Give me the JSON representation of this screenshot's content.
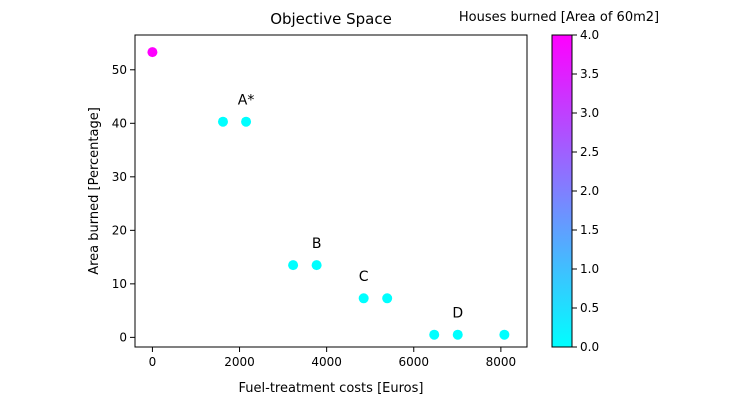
{
  "chart_data": {
    "type": "scatter",
    "title": "Objective Space",
    "xlabel": "Fuel-treatment costs [Euros]",
    "ylabel": "Area burned [Percentage]",
    "xlim": [
      -400,
      8600
    ],
    "ylim": [
      -1.8,
      56.5
    ],
    "xticks": [
      0,
      2000,
      4000,
      6000,
      8000
    ],
    "yticks": [
      0,
      10,
      20,
      30,
      40,
      50
    ],
    "grid": false,
    "colorbar": {
      "label": "Houses burned [Area of 60m2]",
      "range": [
        0.0,
        4.0
      ],
      "ticks": [
        "0.0",
        "0.5",
        "1.0",
        "1.5",
        "2.0",
        "2.5",
        "3.0",
        "3.5",
        "4.0"
      ],
      "colormap": "cool",
      "colors": [
        "#00ffff",
        "#ff00ff"
      ]
    },
    "points": [
      {
        "x": 0,
        "y": 53.3,
        "houses": 4.0
      },
      {
        "x": 1620,
        "y": 40.3,
        "houses": 0.0
      },
      {
        "x": 2150,
        "y": 40.3,
        "houses": 0.0
      },
      {
        "x": 3230,
        "y": 13.5,
        "houses": 0.0
      },
      {
        "x": 3770,
        "y": 13.5,
        "houses": 0.0
      },
      {
        "x": 4850,
        "y": 7.3,
        "houses": 0.0
      },
      {
        "x": 5390,
        "y": 7.3,
        "houses": 0.0
      },
      {
        "x": 6470,
        "y": 0.5,
        "houses": 0.0
      },
      {
        "x": 7010,
        "y": 0.5,
        "houses": 0.0
      },
      {
        "x": 8080,
        "y": 0.5,
        "houses": 0.0
      }
    ],
    "annotations": [
      {
        "text": "A*",
        "x": 2150,
        "y": 43.5
      },
      {
        "text": "B",
        "x": 3770,
        "y": 16.7
      },
      {
        "text": "C",
        "x": 4850,
        "y": 10.5
      },
      {
        "text": "D",
        "x": 7010,
        "y": 3.7
      }
    ]
  }
}
